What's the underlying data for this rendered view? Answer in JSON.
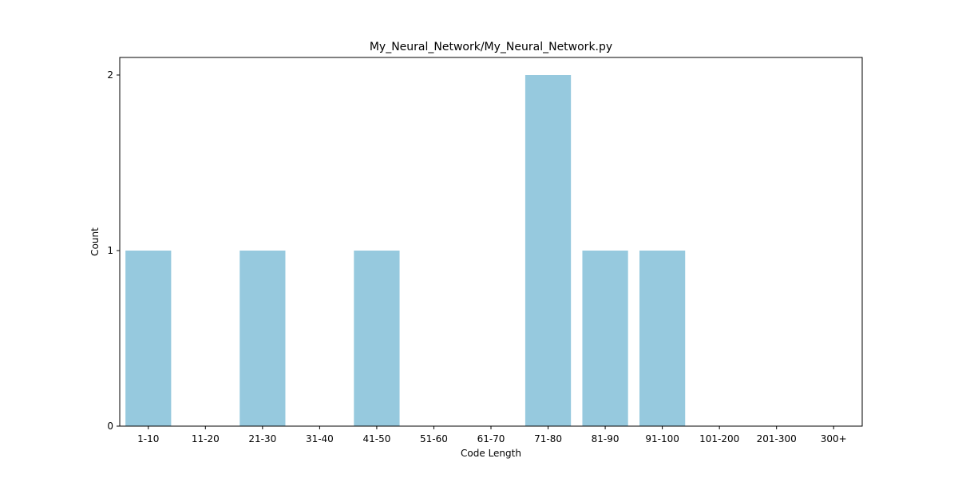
{
  "chart_data": {
    "type": "bar",
    "title": "My_Neural_Network/My_Neural_Network.py",
    "xlabel": "Code Length",
    "ylabel": "Count",
    "categories": [
      "1-10",
      "11-20",
      "21-30",
      "31-40",
      "41-50",
      "51-60",
      "61-70",
      "71-80",
      "81-90",
      "91-100",
      "101-200",
      "201-300",
      "300+"
    ],
    "values": [
      1,
      0,
      1,
      0,
      1,
      0,
      0,
      2,
      1,
      1,
      0,
      0,
      0
    ],
    "ylim": [
      0,
      2.1
    ],
    "yticks": [
      0,
      1,
      2
    ],
    "bar_color": "#96c9de",
    "grid": false,
    "legend": "none"
  }
}
